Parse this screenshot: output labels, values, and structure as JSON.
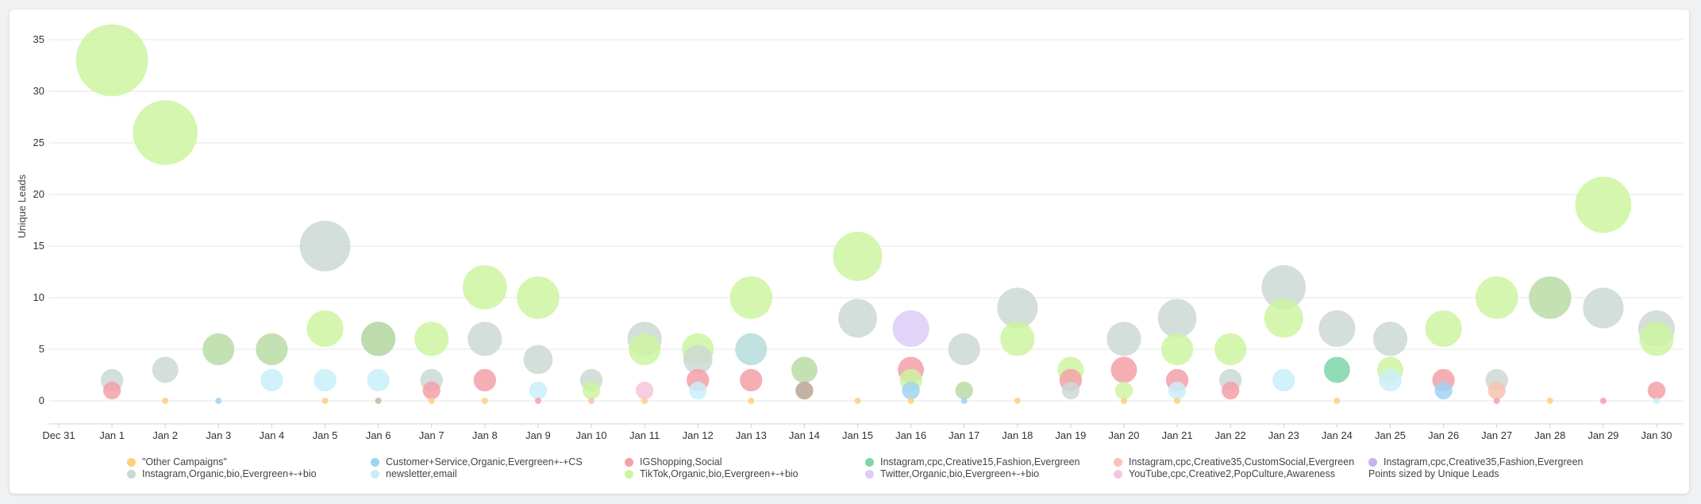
{
  "chart_data": {
    "type": "scatter",
    "ylabel": "Unique Leads",
    "ylim": [
      -2,
      37
    ],
    "yticks": [
      0,
      5,
      10,
      15,
      20,
      25,
      30,
      35
    ],
    "x_tick_labels": [
      "Dec 31",
      "Jan 1",
      "Jan 2",
      "Jan 3",
      "Jan 4",
      "Jan 5",
      "Jan 6",
      "Jan 7",
      "Jan 8",
      "Jan 9",
      "Jan 10",
      "Jan 11",
      "Jan 12",
      "Jan 13",
      "Jan 14",
      "Jan 15",
      "Jan 16",
      "Jan 17",
      "Jan 18",
      "Jan 19",
      "Jan 20",
      "Jan 21",
      "Jan 22",
      "Jan 23",
      "Jan 24",
      "Jan 25",
      "Jan 26",
      "Jan 27",
      "Jan 28",
      "Jan 29",
      "Jan 30"
    ],
    "grid": true,
    "legend_position": "bottom",
    "size_note": "Points sized by Unique Leads",
    "series": [
      {
        "name": "\"Other Campaigns\"",
        "color": "#ffcf7a",
        "points": [
          [
            "Jan 2",
            0
          ],
          [
            "Jan 5",
            0
          ],
          [
            "Jan 7",
            0
          ],
          [
            "Jan 8",
            0
          ],
          [
            "Jan 11",
            0
          ],
          [
            "Jan 13",
            0
          ],
          [
            "Jan 15",
            0
          ],
          [
            "Jan 16",
            0
          ],
          [
            "Jan 18",
            0
          ],
          [
            "Jan 20",
            0
          ],
          [
            "Jan 21",
            0
          ],
          [
            "Jan 24",
            0
          ],
          [
            "Jan 28",
            0
          ]
        ]
      },
      {
        "name": "Customer+Service,Organic,Evergreen+-+CS",
        "color": "#9fd3f6",
        "points": [
          [
            "Jan 3",
            0
          ],
          [
            "Jan 16",
            1
          ],
          [
            "Jan 17",
            0
          ],
          [
            "Jan 26",
            1
          ]
        ]
      },
      {
        "name": "IGShopping,Social",
        "color": "#f4a0a8",
        "points": [
          [
            "Jan 1",
            1
          ],
          [
            "Jan 7",
            1
          ],
          [
            "Jan 8",
            2
          ],
          [
            "Jan 9",
            0
          ],
          [
            "Jan 12",
            2
          ],
          [
            "Jan 13",
            2
          ],
          [
            "Jan 16",
            3
          ],
          [
            "Jan 19",
            2
          ],
          [
            "Jan 20",
            3
          ],
          [
            "Jan 21",
            2
          ],
          [
            "Jan 22",
            1
          ],
          [
            "Jan 26",
            2
          ],
          [
            "Jan 27",
            0
          ],
          [
            "Jan 29",
            0
          ],
          [
            "Jan 30",
            1
          ]
        ]
      },
      {
        "name": "Instagram,cpc,Creative15,Fashion,Evergreen",
        "color": "#7fd6a8",
        "points": [
          [
            "Jan 24",
            3
          ]
        ]
      },
      {
        "name": "Instagram,cpc,Creative35,CustomSocial,Evergreen",
        "color": "#f7c4b2",
        "points": [
          [
            "Jan 10",
            0
          ],
          [
            "Jan 27",
            1
          ]
        ]
      },
      {
        "name": "Instagram,cpc,Creative35,Fashion,Evergreen",
        "color": "#c8b4e6",
        "points": []
      },
      {
        "name": "Instagram,Organic,bio,Evergreen+-+bio",
        "color": "#ccd8d5",
        "points": [
          [
            "Jan 1",
            2
          ],
          [
            "Jan 2",
            3
          ],
          [
            "Jan 5",
            15
          ],
          [
            "Jan 6",
            6
          ],
          [
            "Jan 7",
            2
          ],
          [
            "Jan 8",
            6
          ],
          [
            "Jan 9",
            4
          ],
          [
            "Jan 10",
            2
          ],
          [
            "Jan 11",
            6
          ],
          [
            "Jan 12",
            4
          ],
          [
            "Jan 15",
            8
          ],
          [
            "Jan 17",
            5
          ],
          [
            "Jan 18",
            9
          ],
          [
            "Jan 19",
            1
          ],
          [
            "Jan 20",
            6
          ],
          [
            "Jan 21",
            8
          ],
          [
            "Jan 22",
            2
          ],
          [
            "Jan 23",
            11
          ],
          [
            "Jan 24",
            7
          ],
          [
            "Jan 25",
            6
          ],
          [
            "Jan 27",
            2
          ],
          [
            "Jan 29",
            9
          ],
          [
            "Jan 30",
            7
          ]
        ]
      },
      {
        "name": "newsletter,email",
        "color": "#c9eefa",
        "points": [
          [
            "Jan 4",
            2
          ],
          [
            "Jan 5",
            2
          ],
          [
            "Jan 6",
            2
          ],
          [
            "Jan 9",
            1
          ],
          [
            "Jan 12",
            1
          ],
          [
            "Jan 21",
            1
          ],
          [
            "Jan 23",
            2
          ],
          [
            "Jan 25",
            2
          ],
          [
            "Jan 30",
            0
          ]
        ]
      },
      {
        "name": "TikTok,Organic,bio,Evergreen+-+bio",
        "color": "#cdf5a0",
        "points": [
          [
            "Jan 1",
            33
          ],
          [
            "Jan 2",
            26
          ],
          [
            "Jan 5",
            7
          ],
          [
            "Jan 7",
            6
          ],
          [
            "Jan 8",
            11
          ],
          [
            "Jan 9",
            10
          ],
          [
            "Jan 10",
            1
          ],
          [
            "Jan 11",
            5
          ],
          [
            "Jan 12",
            5
          ],
          [
            "Jan 13",
            10
          ],
          [
            "Jan 15",
            14
          ],
          [
            "Jan 16",
            2
          ],
          [
            "Jan 18",
            6
          ],
          [
            "Jan 19",
            3
          ],
          [
            "Jan 20",
            1
          ],
          [
            "Jan 21",
            5
          ],
          [
            "Jan 22",
            5
          ],
          [
            "Jan 23",
            8
          ],
          [
            "Jan 25",
            3
          ],
          [
            "Jan 26",
            7
          ],
          [
            "Jan 27",
            10
          ],
          [
            "Jan 29",
            19
          ],
          [
            "Jan 30",
            6
          ]
        ]
      },
      {
        "name": "Twitter,Organic,bio,Evergreen+-+bio",
        "color": "#dccdf7",
        "points": [
          [
            "Jan 16",
            7
          ]
        ]
      },
      {
        "name": "YouTube,cpc,Creative2,PopCulture,Awareness",
        "color": "#f6c6dc",
        "points": [
          [
            "Jan 11",
            1
          ]
        ]
      }
    ],
    "overlap_points": [
      {
        "x": "Jan 3",
        "y": 5,
        "color": "#b9dca6"
      },
      {
        "x": "Jan 4",
        "y": 5,
        "color": "#b9dca6"
      },
      {
        "x": "Jan 6",
        "y": 6,
        "color": "#b9dca6"
      },
      {
        "x": "Jan 6",
        "y": 0,
        "color": "#c9b899"
      },
      {
        "x": "Jan 13",
        "y": 5,
        "color": "#b7dcdc"
      },
      {
        "x": "Jan 14",
        "y": 3,
        "color": "#b9dca6"
      },
      {
        "x": "Jan 14",
        "y": 1,
        "color": "#b8a593"
      },
      {
        "x": "Jan 17",
        "y": 1,
        "color": "#b9dca6"
      },
      {
        "x": "Jan 28",
        "y": 10,
        "color": "#b9dca6"
      }
    ]
  }
}
